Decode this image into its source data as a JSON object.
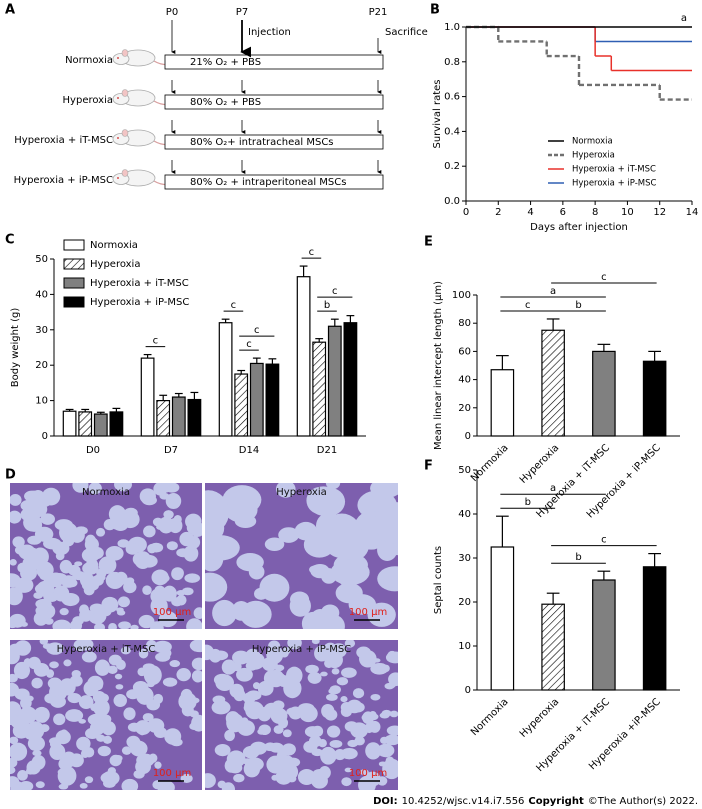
{
  "panel_labels": [
    "A",
    "B",
    "C",
    "D",
    "E",
    "F"
  ],
  "schematic": {
    "timepoints": [
      "P0",
      "P7",
      "P21"
    ],
    "events": [
      "Injection",
      "Sacrifice"
    ],
    "groups": [
      {
        "name": "Normoxia",
        "treatment": "21% O₂ + PBS"
      },
      {
        "name": "Hyperoxia",
        "treatment": "80% O₂ + PBS"
      },
      {
        "name": "Hyperoxia + iT-MSC",
        "treatment": "80% O₂+ intratracheal MSCs"
      },
      {
        "name": "Hyperoxia + iP-MSC",
        "treatment": "80% O₂ + intraperitoneal MSCs"
      }
    ]
  },
  "chart_data": [
    {
      "type": "step",
      "xlabel": "Days after injection",
      "ylabel": "Survival rates",
      "annotation": "a",
      "xlim": [
        0,
        14
      ],
      "xticks": [
        0,
        2,
        4,
        6,
        8,
        10,
        12,
        14
      ],
      "ylim": [
        0,
        1
      ],
      "yticks": [
        {
          "value": 0,
          "label": "0.0"
        },
        0.2,
        0.4,
        0.6,
        0.8,
        {
          "value": 1,
          "label": "1.0"
        }
      ],
      "legend": "lower right",
      "series": [
        {
          "name": "Normoxia",
          "color": "#000000",
          "dashed": false,
          "x": [
            0
          ],
          "values": [
            1
          ]
        },
        {
          "name": "Hyperoxia",
          "color": "#707070",
          "dashed": true,
          "x": [
            0,
            2,
            5,
            7,
            12
          ],
          "values": [
            1,
            0.917,
            0.833,
            0.667,
            0.583
          ]
        },
        {
          "name": "Hyperoxia + iT-MSC",
          "color": "#e8312a",
          "dashed": false,
          "x": [
            0,
            8,
            9
          ],
          "values": [
            1,
            0.833,
            0.75
          ]
        },
        {
          "name": "Hyperoxia + iP-MSC",
          "color": "#2f5fb3",
          "dashed": false,
          "x": [
            0,
            8
          ],
          "values": [
            1,
            0.917
          ]
        }
      ]
    },
    {
      "type": "bar",
      "ylabel": "Body weight (g)",
      "categories": [
        "D0",
        "D7",
        "D14",
        "D21"
      ],
      "ylim": [
        0,
        50
      ],
      "yticks": [
        0,
        10,
        20,
        30,
        40,
        50
      ],
      "legend": "upper left",
      "series": [
        {
          "name": "Normoxia",
          "color": "#ffffff",
          "hatched": false,
          "values": [
            7,
            22,
            32,
            45
          ],
          "errors": [
            0.5,
            1,
            1,
            3
          ]
        },
        {
          "name": "Hyperoxia",
          "color": "#ffffff",
          "hatched": true,
          "values": [
            6.8,
            10,
            17.5,
            26.5
          ],
          "errors": [
            0.7,
            1.5,
            1,
            1
          ]
        },
        {
          "name": "Hyperoxia + iT-MSC",
          "color": "#808080",
          "hatched": false,
          "values": [
            6.2,
            11,
            20.5,
            31
          ],
          "errors": [
            0.5,
            1,
            1.5,
            2
          ]
        },
        {
          "name": "Hyperoxia + iP-MSC",
          "color": "#000000",
          "hatched": false,
          "values": [
            6.8,
            10.3,
            20.3,
            32
          ],
          "errors": [
            1,
            2,
            1.5,
            2
          ]
        }
      ],
      "annotations": [
        {
          "text": "c",
          "category": 1,
          "from": 0,
          "to": 1
        },
        {
          "text": "c",
          "category": 2,
          "from": 1,
          "to": 2
        },
        {
          "text": "c",
          "category": 2,
          "from": 1,
          "to": 3
        },
        {
          "text": "c",
          "category": 2,
          "from": 0,
          "to": 1
        },
        {
          "text": "b",
          "category": 3,
          "from": 1,
          "to": 2
        },
        {
          "text": "c",
          "category": 3,
          "from": 1,
          "to": 3
        },
        {
          "text": "c",
          "category": 3,
          "from": 0,
          "to": 1
        }
      ]
    },
    {
      "type": "bar",
      "ylabel": "Mean linear intercept length (μm)",
      "categories": [
        "Normoxia",
        "Hyperoxia",
        "Hyperoxia + iT-MSC",
        "Hyperoxia + iP-MSC"
      ],
      "values": [
        47,
        75,
        60,
        53
      ],
      "errors": [
        10,
        8,
        5,
        7
      ],
      "colors": [
        "#ffffff",
        "#ffffff",
        "#808080",
        "#000000"
      ],
      "hatched": [
        false,
        true,
        false,
        false
      ],
      "ylim": [
        0,
        100
      ],
      "yticks": [
        0,
        20,
        40,
        60,
        80,
        100
      ],
      "annotations": [
        {
          "text": "b",
          "from": 1,
          "to": 2
        },
        {
          "text": "c",
          "from": 0,
          "to": 1
        },
        {
          "text": "a",
          "from": 0,
          "to": 2
        },
        {
          "text": "c",
          "from": 1,
          "to": 3
        }
      ]
    },
    {
      "type": "bar",
      "ylabel": "Septal counts",
      "categories": [
        "Normoxia",
        "Hyperoxia",
        "Hyperoxia + iT-MSC",
        "Hyperoxia +iP-MSC"
      ],
      "values": [
        32.5,
        19.5,
        25,
        28
      ],
      "errors": [
        7,
        2.5,
        2,
        3
      ],
      "colors": [
        "#ffffff",
        "#ffffff",
        "#808080",
        "#000000"
      ],
      "hatched": [
        false,
        true,
        false,
        false
      ],
      "ylim": [
        0,
        50
      ],
      "yticks": [
        0,
        10,
        20,
        30,
        40,
        50
      ],
      "annotations": [
        {
          "text": "b",
          "from": 1,
          "to": 2
        },
        {
          "text": "c",
          "from": 1,
          "to": 3
        },
        {
          "text": "b",
          "from": 0,
          "to": 1
        },
        {
          "text": "a",
          "from": 0,
          "to": 2
        }
      ]
    }
  ],
  "micrographs": [
    {
      "title": "Normoxia",
      "scale": "100 μm"
    },
    {
      "title": "Hyperoxia",
      "scale": "100 μm"
    },
    {
      "title": "Hyperoxia + iT-MSC",
      "scale": "100 μm"
    },
    {
      "title": "Hyperoxia + iP-MSC",
      "scale": "100 μm"
    }
  ],
  "footer": {
    "doi_label": "DOI:",
    "doi": "10.4252/wjsc.v14.i7.556",
    "copyright_label": "Copyright",
    "copyright": "©The Author(s) 2022."
  }
}
